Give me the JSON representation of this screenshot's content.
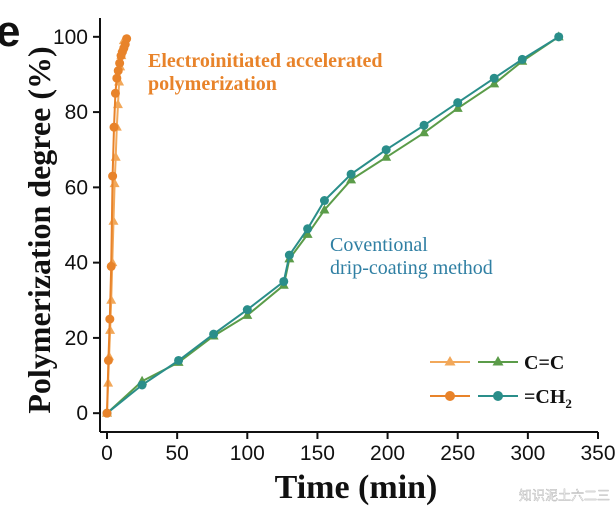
{
  "panel_label": "e",
  "watermark": "知识泥土六二三",
  "chart_data": {
    "type": "line",
    "title": "",
    "xlabel": "Time (min)",
    "ylabel": "Polymerization degree (%)",
    "xlim": [
      -5,
      350
    ],
    "ylim": [
      -5,
      105
    ],
    "xticks": [
      0,
      50,
      100,
      150,
      200,
      250,
      300,
      350
    ],
    "yticks": [
      0,
      20,
      40,
      60,
      80,
      100
    ],
    "annotations": [
      {
        "id": "electro",
        "lines": [
          "Electroinitiated accelerated",
          "polymerization"
        ],
        "color": "#e8832a"
      },
      {
        "id": "drip",
        "lines": [
          "Coventional",
          "drip-coating method"
        ],
        "color": "#2f7fa3"
      }
    ],
    "legend": {
      "position": "bottom-right",
      "entries": [
        {
          "label": "C=C",
          "markers": [
            "triangle-orange",
            "triangle-green"
          ]
        },
        {
          "label": "=CH",
          "subscript": "2",
          "markers": [
            "circle-orange",
            "circle-teal"
          ]
        }
      ]
    },
    "series": [
      {
        "name": "Electro C=C",
        "color": "#f2a85a",
        "marker": "triangle",
        "x": [
          0,
          0.8,
          1.5,
          2.2,
          3,
          3.8,
          4.6,
          5.4,
          6.2,
          7,
          7.8,
          8.6,
          9.4,
          10.2,
          11,
          12
        ],
        "y": [
          0,
          8,
          15,
          22,
          30,
          40,
          51,
          61,
          68,
          76,
          82,
          88,
          92,
          95,
          97,
          99
        ]
      },
      {
        "name": "Electro =CH2",
        "color": "#e8832a",
        "marker": "circle",
        "x": [
          0,
          1,
          2,
          3,
          4,
          5,
          6,
          7,
          8,
          9,
          10,
          11,
          12,
          13,
          14
        ],
        "y": [
          0,
          14,
          25,
          39,
          63,
          76,
          85,
          89,
          91,
          93,
          95,
          96,
          97,
          98,
          99.5
        ]
      },
      {
        "name": "Drip C=C",
        "color": "#5b9c49",
        "marker": "triangle",
        "x": [
          0,
          25,
          51,
          76,
          100,
          126,
          130,
          143,
          155,
          174,
          199,
          226,
          250,
          276,
          296,
          322
        ],
        "y": [
          0,
          8.5,
          13.5,
          20.5,
          26,
          34,
          41,
          47.5,
          54,
          62,
          68,
          74.5,
          81,
          87.5,
          93.5,
          100
        ]
      },
      {
        "name": "Drip =CH2",
        "color": "#2a8e8a",
        "marker": "circle",
        "x": [
          0,
          25,
          51,
          76,
          100,
          126,
          130,
          143,
          155,
          174,
          199,
          226,
          250,
          276,
          296,
          322
        ],
        "y": [
          0,
          7.5,
          14,
          21,
          27.5,
          35,
          42,
          49,
          56.5,
          63.5,
          70,
          76.5,
          82.5,
          89,
          94,
          100
        ]
      }
    ]
  }
}
